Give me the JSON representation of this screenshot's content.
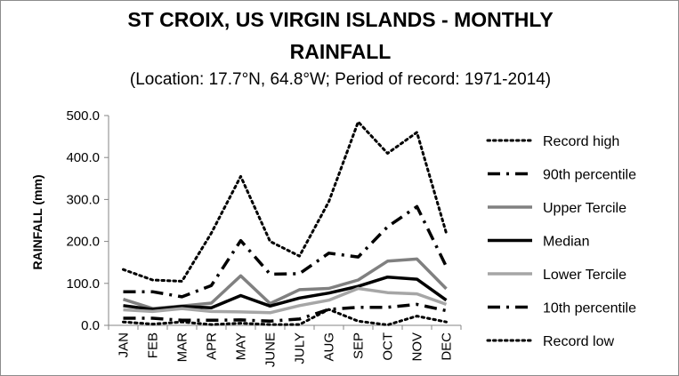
{
  "chart_data": {
    "type": "line",
    "title_line1": "ST CROIX, US VIRGIN ISLANDS - MONTHLY",
    "title_line2": "RAINFALL",
    "subtitle": "(Location: 17.7°N, 64.8°W; Period of record: 1971-2014)",
    "xlabel": "",
    "ylabel": "RAINFALL (mm)",
    "ylim": [
      0,
      500
    ],
    "y_ticks": [
      "0.0",
      "100.0",
      "200.0",
      "300.0",
      "400.0",
      "500.0"
    ],
    "categories": [
      "JAN",
      "FEB",
      "MAR",
      "APR",
      "MAY",
      "JUNE",
      "JULY",
      "AUG",
      "SEP",
      "OCT",
      "NOV",
      "DEC"
    ],
    "grid": false,
    "legend_position": "right",
    "series": [
      {
        "name": "Record high",
        "style": "dotted",
        "color": "#000000",
        "values": [
          133,
          108,
          105,
          220,
          355,
          200,
          165,
          295,
          485,
          410,
          460,
          220
        ]
      },
      {
        "name": "90th percentile",
        "style": "dashdot",
        "color": "#000000",
        "values": [
          80,
          80,
          68,
          95,
          202,
          122,
          123,
          172,
          163,
          235,
          283,
          140
        ]
      },
      {
        "name": "Upper Tercile",
        "style": "solid",
        "color": "#808080",
        "values": [
          62,
          40,
          46,
          53,
          118,
          52,
          85,
          88,
          108,
          153,
          158,
          87
        ]
      },
      {
        "name": "Median",
        "style": "solid",
        "color": "#000000",
        "values": [
          47,
          38,
          45,
          42,
          71,
          46,
          65,
          77,
          93,
          115,
          110,
          60
        ]
      },
      {
        "name": "Lower Tercile",
        "style": "solid",
        "color": "#a6a6a6",
        "values": [
          37,
          33,
          40,
          33,
          32,
          30,
          47,
          60,
          88,
          78,
          75,
          50
        ]
      },
      {
        "name": "10th percentile",
        "style": "dashdot",
        "color": "#000000",
        "values": [
          17,
          17,
          12,
          12,
          13,
          10,
          15,
          38,
          43,
          43,
          50,
          35
        ]
      },
      {
        "name": "Record low",
        "style": "dotted",
        "color": "#000000",
        "values": [
          8,
          3,
          8,
          2,
          5,
          2,
          2,
          38,
          10,
          1,
          22,
          8
        ]
      }
    ]
  }
}
